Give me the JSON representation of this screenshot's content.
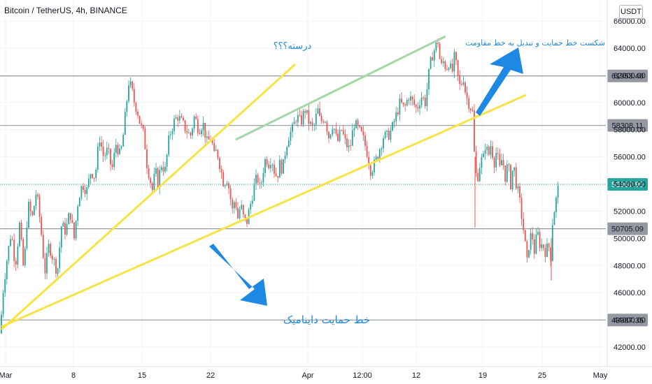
{
  "header": {
    "title": "Bitcoin / TetherUS, 4h, BINANCE",
    "currency": "USDT"
  },
  "annotations": {
    "question": "درسته؟؟؟",
    "breakout": "شکست خط حمایت و تبدیل به خط مقاومت",
    "dynamic_support": "خط حمایت داینامیک"
  },
  "colors": {
    "up": "#26a69a",
    "down": "#ef5350",
    "trend_yellow": "#f7e444",
    "trend_green": "#a5d6a7",
    "arrow_blue": "#1e88e5",
    "last_price": "#26a69a"
  },
  "chart_data": {
    "type": "candlestick",
    "symbol": "Bitcoin / TetherUS",
    "interval": "4h",
    "exchange": "BINANCE",
    "ylim": [
      41000,
      66000
    ],
    "y_ticks": [
      "42000.00",
      "44000.00",
      "46000.00",
      "48000.00",
      "50000.00",
      "52000.00",
      "54000.00",
      "56000.00",
      "58000.00",
      "60000.00",
      "62000.00",
      "64000.00",
      "66000.00"
    ],
    "x_ticks": [
      "Mar",
      "8",
      "15",
      "22",
      "Apr",
      "12:00",
      "12",
      "19",
      "25",
      "May"
    ],
    "horizontal_levels": [
      {
        "value": 61953.4,
        "label": "61953.40"
      },
      {
        "value": 58308.11,
        "label": "58308.11"
      },
      {
        "value": 50705.09,
        "label": "50705.09"
      },
      {
        "value": 43987.35,
        "label": "43987.35"
      }
    ],
    "last_price": {
      "value": 53967.95,
      "label": "53967.95"
    },
    "price_path": [
      [
        0,
        43000
      ],
      [
        5,
        46500
      ],
      [
        10,
        48500
      ],
      [
        16,
        50500
      ],
      [
        22,
        48000
      ],
      [
        28,
        51000
      ],
      [
        34,
        47500
      ],
      [
        40,
        52500
      ],
      [
        46,
        51500
      ],
      [
        52,
        53500
      ],
      [
        58,
        51000
      ],
      [
        64,
        47500
      ],
      [
        70,
        49500
      ],
      [
        76,
        48500
      ],
      [
        82,
        47500
      ],
      [
        88,
        51000
      ],
      [
        94,
        50500
      ],
      [
        100,
        52000
      ],
      [
        106,
        50000
      ],
      [
        112,
        53000
      ],
      [
        118,
        54000
      ],
      [
        124,
        53500
      ],
      [
        130,
        55000
      ],
      [
        136,
        54500
      ],
      [
        142,
        57500
      ],
      [
        148,
        56000
      ],
      [
        154,
        56500
      ],
      [
        160,
        55000
      ],
      [
        166,
        57000
      ],
      [
        172,
        56000
      ],
      [
        176,
        57500
      ],
      [
        180,
        59500
      ],
      [
        184,
        61500
      ],
      [
        188,
        61000
      ],
      [
        192,
        60000
      ],
      [
        196,
        59500
      ],
      [
        200,
        58500
      ],
      [
        206,
        57500
      ],
      [
        210,
        55500
      ],
      [
        214,
        54500
      ],
      [
        218,
        53500
      ],
      [
        222,
        55000
      ],
      [
        226,
        54000
      ],
      [
        230,
        55500
      ],
      [
        236,
        55000
      ],
      [
        242,
        57500
      ],
      [
        248,
        58500
      ],
      [
        254,
        59000
      ],
      [
        260,
        58500
      ],
      [
        266,
        58000
      ],
      [
        272,
        57500
      ],
      [
        278,
        59000
      ],
      [
        284,
        58000
      ],
      [
        290,
        58500
      ],
      [
        296,
        57000
      ],
      [
        302,
        57500
      ],
      [
        306,
        56000
      ],
      [
        310,
        56500
      ],
      [
        316,
        55000
      ],
      [
        320,
        54000
      ],
      [
        324,
        54500
      ],
      [
        328,
        53500
      ],
      [
        332,
        52000
      ],
      [
        336,
        53000
      ],
      [
        340,
        51500
      ],
      [
        344,
        52500
      ],
      [
        348,
        51500
      ],
      [
        352,
        51000
      ],
      [
        356,
        52000
      ],
      [
        360,
        53000
      ],
      [
        364,
        54000
      ],
      [
        368,
        54500
      ],
      [
        372,
        53500
      ],
      [
        376,
        55000
      ],
      [
        380,
        56000
      ],
      [
        384,
        55500
      ],
      [
        388,
        56000
      ],
      [
        392,
        55000
      ],
      [
        396,
        54500
      ],
      [
        400,
        55500
      ],
      [
        404,
        55000
      ],
      [
        408,
        56500
      ],
      [
        412,
        57500
      ],
      [
        418,
        58000
      ],
      [
        424,
        59000
      ],
      [
        430,
        58500
      ],
      [
        436,
        59500
      ],
      [
        442,
        58500
      ],
      [
        448,
        58000
      ],
      [
        454,
        59500
      ],
      [
        458,
        58500
      ],
      [
        464,
        59000
      ],
      [
        470,
        57500
      ],
      [
        476,
        58500
      ],
      [
        482,
        57000
      ],
      [
        488,
        58000
      ],
      [
        494,
        57000
      ],
      [
        500,
        56500
      ],
      [
        506,
        58500
      ],
      [
        512,
        58000
      ],
      [
        518,
        57500
      ],
      [
        524,
        56500
      ],
      [
        530,
        55000
      ],
      [
        536,
        55500
      ],
      [
        542,
        56500
      ],
      [
        548,
        57500
      ],
      [
        554,
        57500
      ],
      [
        560,
        58000
      ],
      [
        566,
        59000
      ],
      [
        572,
        60000
      ],
      [
        578,
        59500
      ],
      [
        584,
        60500
      ],
      [
        590,
        60000
      ],
      [
        596,
        59500
      ],
      [
        602,
        60500
      ],
      [
        608,
        60000
      ],
      [
        614,
        62500
      ],
      [
        618,
        63500
      ],
      [
        622,
        64000
      ],
      [
        626,
        64500
      ],
      [
        630,
        62500
      ],
      [
        634,
        63000
      ],
      [
        638,
        62500
      ],
      [
        642,
        63000
      ],
      [
        646,
        62000
      ],
      [
        650,
        63500
      ],
      [
        654,
        62000
      ],
      [
        658,
        61000
      ],
      [
        662,
        62000
      ],
      [
        666,
        60500
      ],
      [
        670,
        60000
      ],
      [
        674,
        59500
      ],
      [
        677,
        59000
      ],
      [
        679,
        53500
      ],
      [
        681,
        55000
      ],
      [
        684,
        54500
      ],
      [
        687,
        56000
      ],
      [
        690,
        55500
      ],
      [
        694,
        57000
      ],
      [
        698,
        56000
      ],
      [
        702,
        57000
      ],
      [
        706,
        55500
      ],
      [
        710,
        56500
      ],
      [
        714,
        55000
      ],
      [
        718,
        56000
      ],
      [
        722,
        54500
      ],
      [
        726,
        55500
      ],
      [
        730,
        54000
      ],
      [
        734,
        55500
      ],
      [
        738,
        54000
      ],
      [
        742,
        53000
      ],
      [
        746,
        51500
      ],
      [
        750,
        50000
      ],
      [
        753,
        48000
      ],
      [
        756,
        49500
      ],
      [
        760,
        50500
      ],
      [
        764,
        49000
      ],
      [
        768,
        50500
      ],
      [
        772,
        49500
      ],
      [
        776,
        49500
      ],
      [
        780,
        49000
      ],
      [
        784,
        49500
      ],
      [
        788,
        48500
      ],
      [
        790,
        51500
      ],
      [
        794,
        52500
      ],
      [
        797,
        53500
      ],
      [
        800,
        53968
      ]
    ],
    "trendlines": [
      {
        "color": "yellow",
        "from": [
          "Mar",
          43000
        ],
        "to": [
          "Apr",
          64800
        ]
      },
      {
        "color": "yellow",
        "from": [
          "Mar",
          43000
        ],
        "to": [
          "Apr 19",
          60400
        ]
      },
      {
        "color": "green",
        "from": [
          "Mar 24",
          57200
        ],
        "to": [
          "Apr 14",
          64800
        ]
      }
    ]
  }
}
